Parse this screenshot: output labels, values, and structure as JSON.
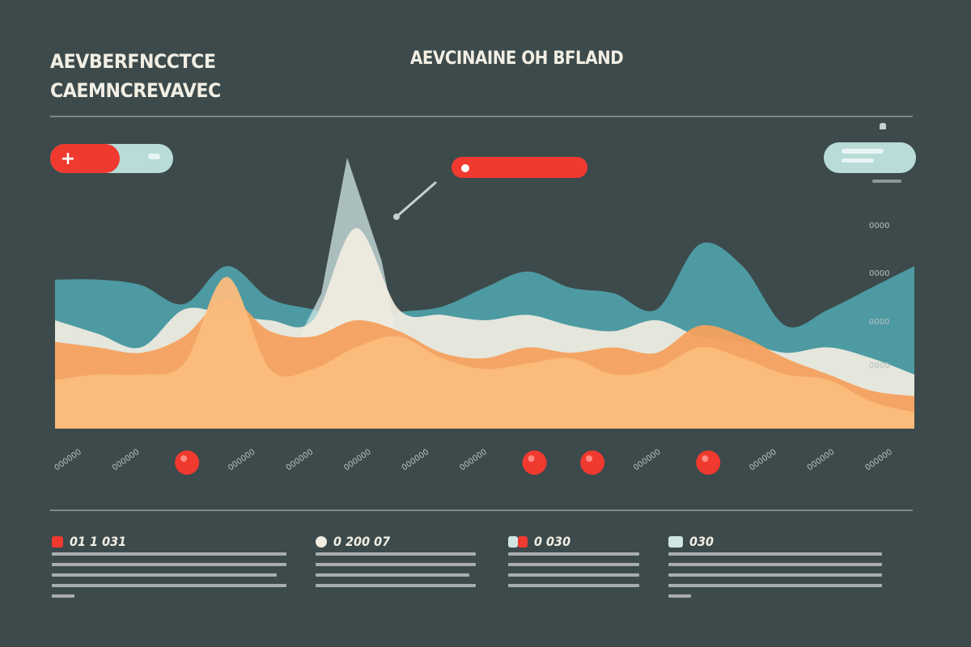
{
  "header": {
    "title_line1": "AEVBERFNCCTCE",
    "title_line2": "CAEMNCREVAVEC",
    "center_title": "AEVCINAINE OH BFLAND"
  },
  "colors": {
    "background": "#3d4a4b",
    "teal": "#4e9ea6",
    "pale": "#f2ede1",
    "light_teal": "#cfe5e3",
    "orange": "#f4a15e",
    "light_orange": "#fbbc7c",
    "red": "#f0392f"
  },
  "chart_data": {
    "type": "area",
    "x": [
      0,
      1,
      2,
      3,
      4,
      5,
      6,
      7,
      8,
      9,
      10,
      11,
      12,
      13,
      14,
      15,
      16,
      17,
      18,
      19,
      20
    ],
    "series": [
      {
        "values": [
          0.55,
          0.55,
          0.53,
          0.46,
          0.6,
          0.48,
          0.44,
          0.4,
          0.43,
          0.45,
          0.52,
          0.58,
          0.52,
          0.5,
          0.44,
          0.68,
          0.6,
          0.38,
          0.44,
          0.52,
          0.6
        ]
      },
      {
        "values": [
          0.4,
          0.35,
          0.3,
          0.44,
          0.42,
          0.4,
          0.4,
          0.74,
          0.44,
          0.42,
          0.4,
          0.42,
          0.38,
          0.36,
          0.4,
          0.34,
          0.32,
          0.28,
          0.3,
          0.26,
          0.2
        ]
      },
      {
        "values": [
          0.32,
          0.3,
          0.28,
          0.34,
          0.48,
          0.36,
          0.34,
          0.4,
          0.36,
          0.28,
          0.26,
          0.3,
          0.28,
          0.3,
          0.28,
          0.38,
          0.34,
          0.26,
          0.2,
          0.14,
          0.12
        ]
      },
      {
        "values": [
          0.18,
          0.2,
          0.2,
          0.24,
          0.56,
          0.22,
          0.22,
          0.3,
          0.34,
          0.26,
          0.22,
          0.24,
          0.26,
          0.2,
          0.22,
          0.3,
          0.26,
          0.2,
          0.18,
          0.1,
          0.06
        ]
      }
    ],
    "ylabels": [
      "0000",
      "0000",
      "0000",
      "0000"
    ],
    "xlabels": [
      "000000",
      "000000",
      "",
      "000000",
      "000000",
      "000000",
      "000000",
      "000000",
      "",
      "",
      "000000",
      "",
      "000000",
      "000000",
      "000000"
    ],
    "markers": [
      2,
      8,
      9,
      11
    ]
  },
  "footer": [
    {
      "label": "01 1 031",
      "swatch": "#f0392f"
    },
    {
      "label": "0 200 07",
      "swatch": "#f1eee3"
    },
    {
      "label": "0 030",
      "swatch": "#cfe5e3"
    },
    {
      "label": "030",
      "swatch": "#cfe5e3"
    }
  ]
}
